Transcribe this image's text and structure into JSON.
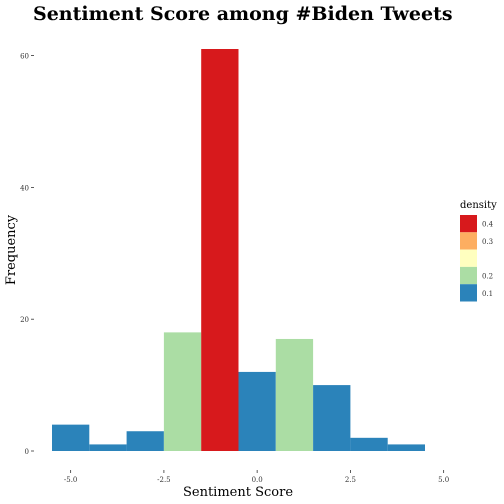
{
  "chart_data": {
    "type": "bar",
    "title": "Sentiment Score among #Biden Tweets",
    "xlabel": "Sentiment Score",
    "ylabel": "Frequency",
    "xlim": [
      -5.5,
      5.0
    ],
    "ylim": [
      0,
      62
    ],
    "x_ticks": [
      -5.0,
      -2.5,
      0.0,
      2.5,
      5.0
    ],
    "x_tick_labels": [
      "-5.0",
      "-2.5",
      "0.0",
      "2.5",
      "5.0"
    ],
    "y_ticks": [
      0,
      20,
      40,
      60
    ],
    "y_tick_labels": [
      "0",
      "20",
      "40",
      "60"
    ],
    "bins": [
      {
        "x_start": -5.5,
        "x_end": -4.5,
        "count": 4,
        "color": "#2b83ba"
      },
      {
        "x_start": -4.5,
        "x_end": -3.5,
        "count": 1,
        "color": "#2b83ba"
      },
      {
        "x_start": -3.5,
        "x_end": -2.5,
        "count": 3,
        "color": "#2b83ba"
      },
      {
        "x_start": -2.5,
        "x_end": -1.5,
        "count": 18,
        "color": "#abdda4"
      },
      {
        "x_start": -1.5,
        "x_end": -0.5,
        "count": 61,
        "color": "#d7191c"
      },
      {
        "x_start": -0.5,
        "x_end": 0.5,
        "count": 12,
        "color": "#2b83ba"
      },
      {
        "x_start": 0.5,
        "x_end": 1.5,
        "count": 17,
        "color": "#abdda4"
      },
      {
        "x_start": 1.5,
        "x_end": 2.5,
        "count": 10,
        "color": "#2b83ba"
      },
      {
        "x_start": 2.5,
        "x_end": 3.5,
        "count": 2,
        "color": "#2b83ba"
      },
      {
        "x_start": 3.5,
        "x_end": 4.5,
        "count": 1,
        "color": "#2b83ba"
      }
    ],
    "grid": false,
    "legend": {
      "title": "density",
      "placement": "right",
      "entries": [
        {
          "label": "0.4",
          "color": "#d7191c"
        },
        {
          "label": "0.3",
          "color": "#fdae61"
        },
        {
          "label": "",
          "color": "#ffffbf"
        },
        {
          "label": "0.2",
          "color": "#abdda4"
        },
        {
          "label": "0.1",
          "color": "#2b83ba"
        }
      ]
    }
  }
}
